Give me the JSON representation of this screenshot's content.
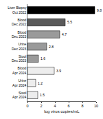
{
  "chart_data": {
    "type": "bar",
    "orientation": "horizontal",
    "categories": [
      "Liver Biopsy\nOct 2022",
      "Blood\nDec 2022",
      "Blood\nDec 2023",
      "Urine\nDec 2023",
      "Stool\nDec 2023",
      "Blood\nApr 2024",
      "Urine\nApr 2024",
      "Stool\nApr 2024"
    ],
    "values": [
      9.8,
      5.5,
      4.7,
      2.8,
      1.6,
      3.9,
      1.2,
      1.5
    ],
    "colors": [
      "#000000",
      "#5a5a5a",
      "#9a9a9a",
      "#9a9a9a",
      "#9a9a9a",
      "#ededed",
      "#ededed",
      "#ededed"
    ],
    "x_label": "log virus copies/mL",
    "xlim": [
      0,
      10
    ],
    "xticks": [
      0,
      2,
      4,
      6,
      8,
      10
    ],
    "data_labels": true,
    "grid": false
  }
}
